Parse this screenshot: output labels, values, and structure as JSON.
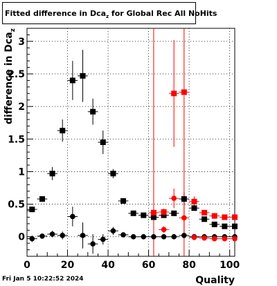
{
  "title": {
    "main": "Fitted difference in Dca",
    "subscript": "z",
    "rest": " for Global Rec All NoHits"
  },
  "timestamp": "Fri Jan  5 10:22:52 2024",
  "chart_data": {
    "type": "scatter",
    "title": "Fitted difference in Dcaz for Global Rec All NoHits",
    "xlabel": "Quality",
    "ylabel": "difference in Dca_z",
    "xlim": [
      0,
      102.5
    ],
    "ylim": [
      -0.3,
      3.2
    ],
    "x_ticks": [
      0,
      20,
      40,
      60,
      80,
      100
    ],
    "y_ticks": [
      0,
      0.5,
      1,
      1.5,
      2,
      2.5,
      3
    ],
    "x_tick_labels": [
      "0",
      "20",
      "40",
      "60",
      "80",
      "100"
    ],
    "y_tick_labels": [
      "0",
      "0.5",
      "1",
      "1.5",
      "2",
      "2.5",
      "3"
    ],
    "grid": "dotted on both axes",
    "legend": "none",
    "series": [
      {
        "marker": "square",
        "color": "#000000",
        "x": [
          2.5,
          7.5,
          12.5,
          17.5,
          22.5,
          27.5,
          32.5,
          37.5,
          42.5,
          47.5,
          52.5,
          57.5,
          62.5,
          67.5,
          72.5,
          77.5,
          82.5,
          87.5,
          92.5,
          97.5,
          102.5
        ],
        "y": [
          0.42,
          0.58,
          0.97,
          1.63,
          2.4,
          2.47,
          1.92,
          1.45,
          0.97,
          0.55,
          0.36,
          0.33,
          0.3,
          0.33,
          0.36,
          0.58,
          0.44,
          0.27,
          0.19,
          0.16,
          0.16
        ],
        "err": [
          0.04,
          0.03,
          0.1,
          0.17,
          0.3,
          0.4,
          0.2,
          0.18,
          0.07,
          0.03,
          0.02,
          0.02,
          0.02,
          0.02,
          0.02,
          0.1,
          0.03,
          0.02,
          0.02,
          0.02,
          0.02
        ]
      },
      {
        "marker": "square",
        "color": "#ff0000",
        "x": [
          62.5,
          67.5,
          72.5,
          77.5,
          82.5,
          87.5,
          92.5,
          97.5,
          102.5
        ],
        "y": [
          0.37,
          0.38,
          2.2,
          2.22,
          0.54,
          0.37,
          0.32,
          0.3,
          0.3
        ],
        "err": [
          3.0,
          0.05,
          0.82,
          3.0,
          0.08,
          0.03,
          0.02,
          0.02,
          0.02
        ]
      },
      {
        "marker": "circle",
        "color": "#000000",
        "x": [
          2.5,
          7.5,
          12.5,
          17.5,
          22.5,
          27.5,
          32.5,
          37.5,
          42.5,
          47.5,
          52.5,
          57.5,
          62.5,
          67.5,
          72.5,
          77.5,
          82.5,
          87.5,
          92.5,
          97.5,
          102.5
        ],
        "y": [
          -0.03,
          0.01,
          0.04,
          0.02,
          0.31,
          0.02,
          -0.11,
          -0.04,
          0.09,
          0.03,
          0.0,
          0.0,
          0.0,
          0.0,
          0.0,
          0.02,
          0.0,
          0.0,
          0.0,
          0.0,
          0.0
        ],
        "err": [
          0.05,
          0.03,
          0.05,
          0.06,
          0.15,
          0.2,
          0.15,
          0.08,
          0.06,
          0.02,
          0.02,
          0.02,
          0.02,
          0.02,
          0.02,
          0.04,
          0.02,
          0.02,
          0.02,
          0.02,
          0.02
        ]
      },
      {
        "marker": "circle",
        "color": "#ff0000",
        "x": [
          67.5,
          72.5,
          77.5,
          82.5,
          87.5,
          92.5,
          97.5,
          102.5
        ],
        "y": [
          0.11,
          0.59,
          0.29,
          -0.01,
          -0.02,
          -0.03,
          -0.03,
          -0.03
        ],
        "err": [
          0.05,
          0.15,
          0.3,
          0.03,
          0.02,
          0.02,
          0.02,
          0.02
        ]
      }
    ]
  }
}
